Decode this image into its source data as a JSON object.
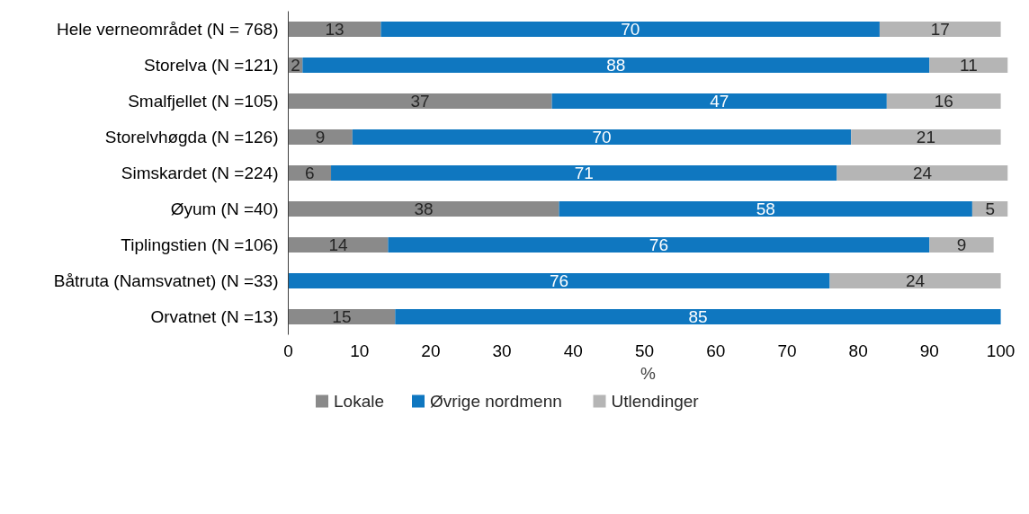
{
  "chart_data": {
    "type": "bar",
    "orientation": "horizontal",
    "stacked": true,
    "xlabel": "%",
    "xlim": [
      0,
      101
    ],
    "xticks": [
      0,
      10,
      20,
      30,
      40,
      50,
      60,
      70,
      80,
      90,
      100
    ],
    "grid": false,
    "legend": "bottom",
    "categories": [
      "Hele verneområdet (N = 768)",
      "Storelva (N =121)",
      "Smalfjellet (N =105)",
      "Storelvhøgda (N =126)",
      "Simskardet (N =224)",
      "Øyum (N =40)",
      "Tiplingstien (N =106)",
      "Båtruta (Namsvatnet) (N =33)",
      "Orvatnet (N =13)"
    ],
    "series": [
      {
        "name": "Lokale",
        "color": "#8a8a8a",
        "values": [
          13,
          2,
          37,
          9,
          6,
          38,
          14,
          0,
          15
        ],
        "value_labels": [
          "13",
          "2",
          "37",
          "9",
          "6",
          "38",
          "14",
          null,
          "15"
        ]
      },
      {
        "name": "Øvrige nordmenn",
        "color": "#0f77c0",
        "values": [
          70,
          88,
          47,
          70,
          71,
          58,
          76,
          76,
          85
        ],
        "value_labels": [
          "70",
          "88",
          "47",
          "70",
          "71",
          "58",
          "76",
          "76",
          "85"
        ]
      },
      {
        "name": "Utlendinger",
        "color": "#b5b5b5",
        "values": [
          17,
          11,
          16,
          21,
          24,
          5,
          9,
          24,
          0
        ],
        "value_labels": [
          "17",
          "11",
          "16",
          "21",
          "24",
          "5",
          "9",
          "24",
          null
        ]
      }
    ]
  }
}
